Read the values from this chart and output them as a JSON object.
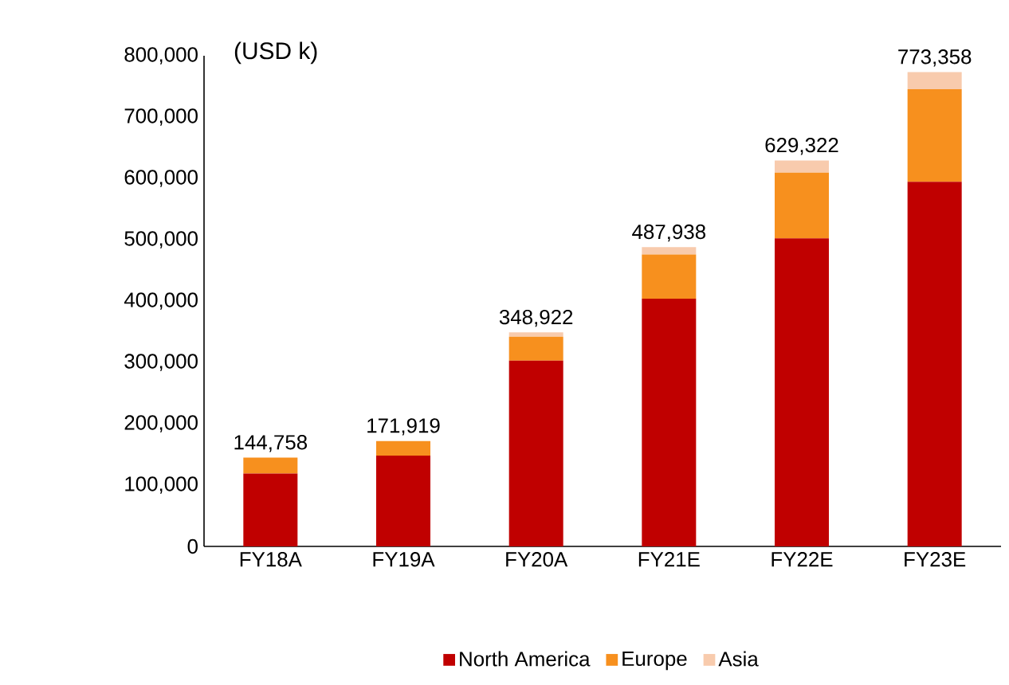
{
  "chart_data": {
    "type": "bar",
    "stacked": true,
    "ylabel": "(USD k)",
    "categories": [
      "FY18A",
      "FY19A",
      "FY20A",
      "FY21E",
      "FY22E",
      "FY23E"
    ],
    "series": [
      {
        "name": "North America",
        "color": "#c00000",
        "values": [
          118758,
          147919,
          302922,
          403938,
          502322,
          594358
        ]
      },
      {
        "name": "Europe",
        "color": "#f7901e",
        "values": [
          26000,
          24000,
          39000,
          72000,
          107000,
          151000
        ]
      },
      {
        "name": "Asia",
        "color": "#f8cbad",
        "values": [
          0,
          0,
          7000,
          12000,
          20000,
          28000
        ]
      }
    ],
    "totals": [
      "144,758",
      "171,919",
      "348,922",
      "487,938",
      "629,322",
      "773,358"
    ],
    "ylim": [
      0,
      800000
    ],
    "yticks": [
      {
        "value": 0,
        "label": "0"
      },
      {
        "value": 100000,
        "label": "100,000"
      },
      {
        "value": 200000,
        "label": "200,000"
      },
      {
        "value": 300000,
        "label": "300,000"
      },
      {
        "value": 400000,
        "label": "400,000"
      },
      {
        "value": 500000,
        "label": "500,000"
      },
      {
        "value": 600000,
        "label": "600,000"
      },
      {
        "value": 700000,
        "label": "700,000"
      },
      {
        "value": 800000,
        "label": "800,000"
      }
    ],
    "grid": false,
    "legend": "bottom"
  }
}
